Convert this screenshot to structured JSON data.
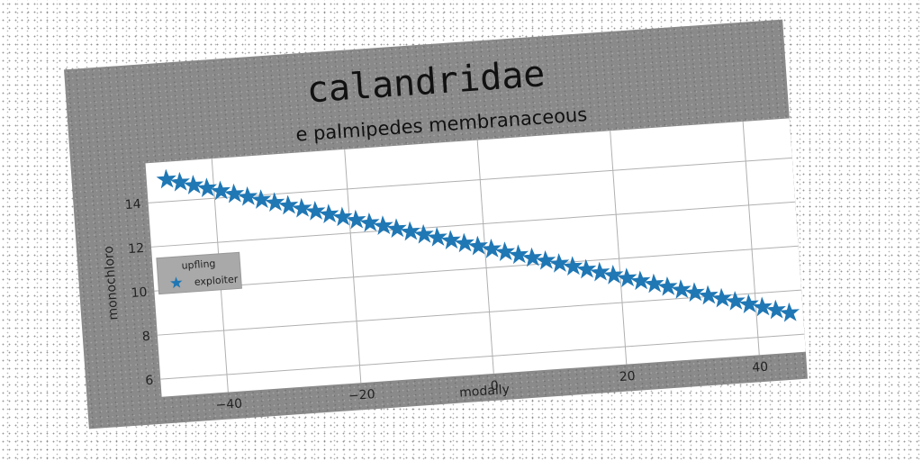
{
  "chart_data": {
    "type": "scatter",
    "title": "calandridae",
    "subtitle": "e palmipedes membranaceous",
    "xlabel": "modally",
    "ylabel": "monochloro",
    "xlim": [
      -50,
      47
    ],
    "ylim": [
      5.2,
      15.8
    ],
    "xticks": [
      "−40",
      "−20",
      "0",
      "20",
      "40"
    ],
    "xtick_values": [
      -40,
      -20,
      0,
      20,
      40
    ],
    "yticks": [
      "6",
      "8",
      "10",
      "12",
      "14"
    ],
    "ytick_values": [
      6,
      8,
      10,
      12,
      14
    ],
    "grid": true,
    "legend": {
      "title": "upfling",
      "placement": "center-left"
    },
    "series": [
      {
        "name": "exploiter",
        "marker": "star",
        "color": "#1f77b4",
        "x_start": -47,
        "x_end": 45,
        "x_step": 2,
        "y_start": 15.0,
        "y_end": 7.0
      }
    ]
  },
  "colors": {
    "figure_bg": "#8a8a8a",
    "plot_bg": "#ffffff",
    "grid": "#b0b0b0",
    "series": "#1f77b4"
  }
}
